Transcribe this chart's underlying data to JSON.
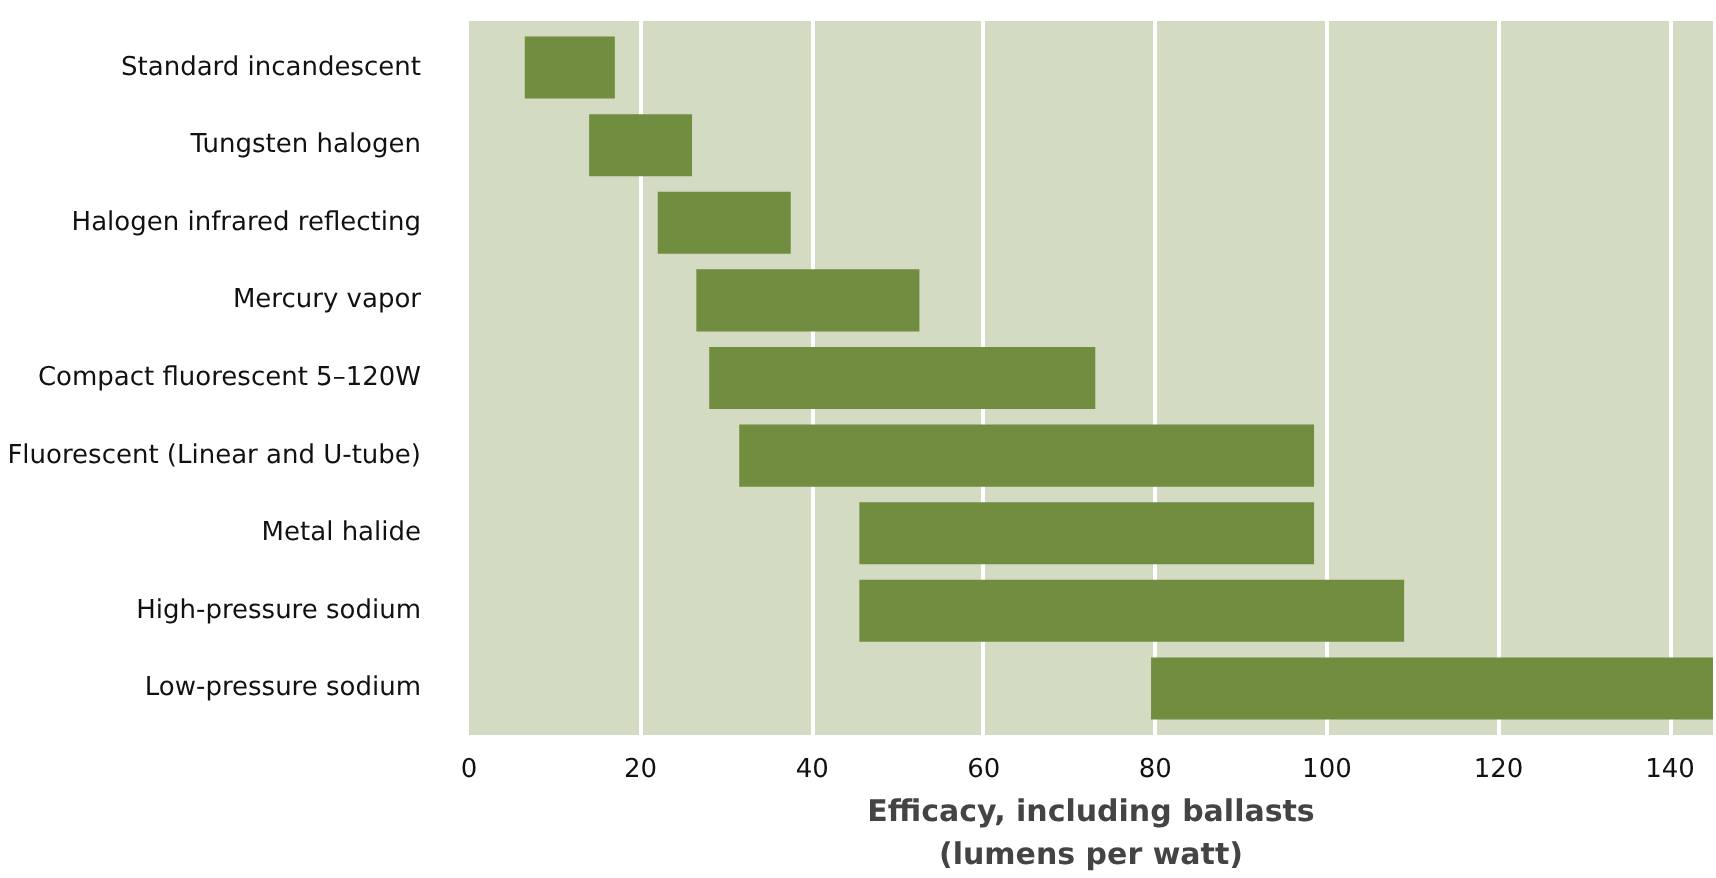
{
  "chart_data": {
    "type": "bar",
    "orientation": "horizontal",
    "xlabel": "Efficacy, including ballasts\n(lumens per watt)",
    "categories": [
      "Standard incandescent",
      "Tungsten halogen",
      "Halogen infrared reflecting",
      "Mercury vapor",
      "Compact fluorescent 5–120W",
      "Fluorescent (Linear and U-tube)",
      "Metal halide",
      "High-pressure sodium",
      "Low-pressure sodium"
    ],
    "base": [
      6.5,
      14,
      22,
      26.5,
      28,
      31.5,
      45.5,
      45.5,
      79.5
    ],
    "values": [
      10.5,
      12,
      15.5,
      26,
      45,
      67,
      53,
      63.5,
      65.5
    ],
    "color": "#718d3f",
    "xlim": [
      0,
      145
    ],
    "xticks": [
      0,
      20,
      40,
      60,
      80,
      100,
      120,
      140
    ],
    "grid": "x"
  }
}
